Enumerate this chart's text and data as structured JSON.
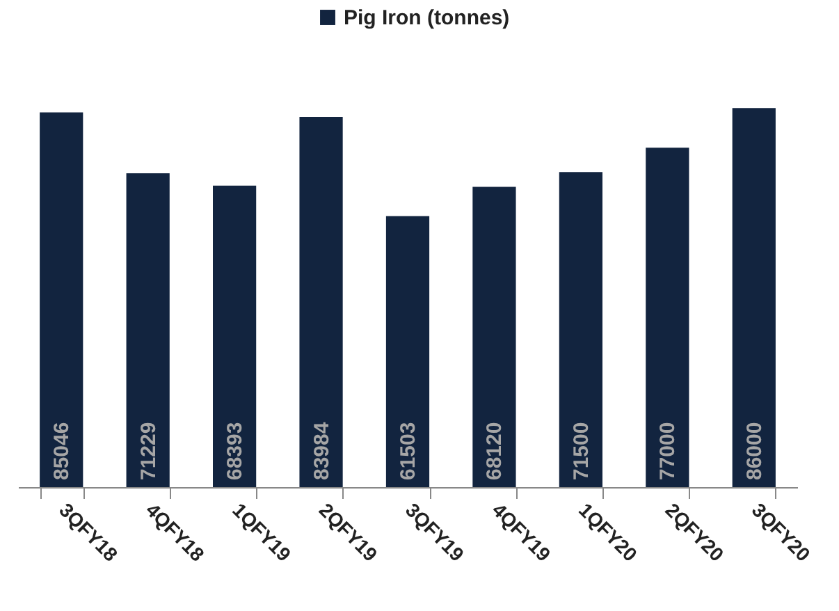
{
  "chart_data": {
    "type": "bar",
    "categories": [
      "3QFY18",
      "4QFY18",
      "1QFY19",
      "2QFY19",
      "3QFY19",
      "4QFY19",
      "1QFY20",
      "2QFY20",
      "3QFY20"
    ],
    "series": [
      {
        "name": "Pig Iron (tonnes)",
        "color": "#12243f",
        "values": [
          85046,
          71229,
          68393,
          83984,
          61503,
          68120,
          71500,
          77000,
          86000
        ]
      }
    ],
    "data_labels": true,
    "legend": "top",
    "grid": false
  }
}
